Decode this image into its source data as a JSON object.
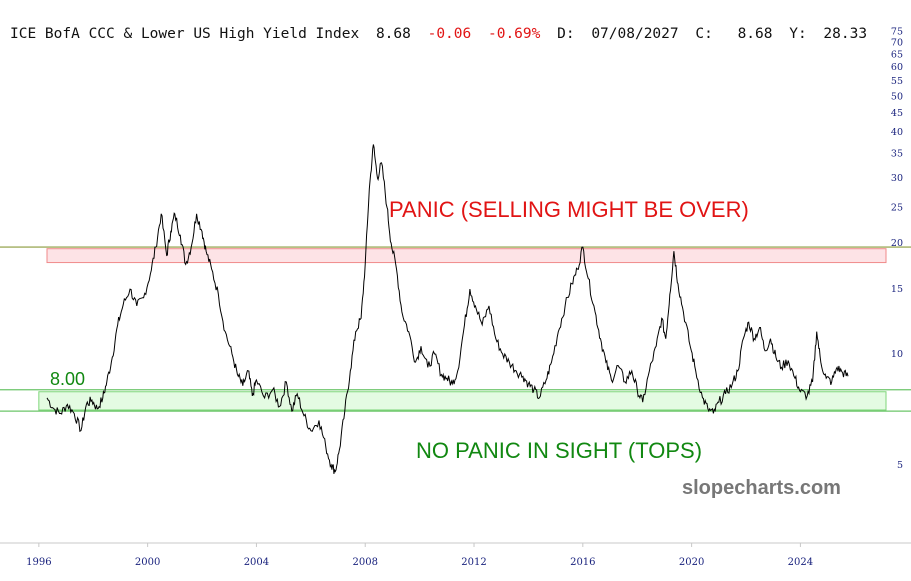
{
  "header": {
    "name": "ICE BofA CCC & Lower US High Yield Index",
    "last": "8.68",
    "change": "-0.06",
    "change_pct": "-0.69%",
    "date_label": "D:",
    "date": "07/08/2027",
    "close_label": "C:",
    "close": "8.68",
    "y_label": "Y:",
    "y_value": "28.33"
  },
  "annotations": {
    "panic_label": "PANIC (SELLING MIGHT BE OVER)",
    "calm_label": "NO PANIC IN SIGHT (TOPS)",
    "level_label": "8.00",
    "watermark": "slopecharts.com"
  },
  "colors": {
    "line": "#000000",
    "red_zone_fill": "#fde3e6",
    "red_zone_edge": "#f08a8a",
    "green_zone_fill": "#e4fbe2",
    "green_zone_edge": "#7fd67a",
    "green_line": "#6cc56a",
    "olive_line": "#8a9a3a",
    "axis_text": "#1a237e"
  },
  "chart_data": {
    "type": "line",
    "scale": "log",
    "ylim": [
      3.5,
      75
    ],
    "xlim": [
      1995.9,
      2027.6
    ],
    "yticks": [
      5,
      10,
      15,
      20,
      25,
      30,
      35,
      40,
      45,
      50,
      55,
      60,
      65,
      70,
      75
    ],
    "xticks": [
      1996,
      2000,
      2004,
      2008,
      2012,
      2016,
      2020,
      2024
    ],
    "reference_lines": [
      {
        "value": 8.0,
        "color": "#6cc56a",
        "label": "8.00"
      },
      {
        "value": 7.0,
        "color": "#6cc56a"
      },
      {
        "value": 19.5,
        "color": "#8a9a3a"
      }
    ],
    "zones": [
      {
        "from": 17.7,
        "to": 19.3,
        "color": "#fde3e6",
        "label": "PANIC (SELLING MIGHT BE OVER)",
        "x_start": 1996.3,
        "x_end": 2027.4
      },
      {
        "from": 7.05,
        "to": 7.9,
        "color": "#e4fbe2",
        "label": "NO PANIC IN SIGHT (TOPS)",
        "x_start": 1996.0,
        "x_end": 2027.5
      }
    ],
    "series": [
      {
        "points": [
          [
            1996.3,
            7.6
          ],
          [
            1996.55,
            7.1
          ],
          [
            1996.8,
            6.9
          ],
          [
            1997.05,
            7.3
          ],
          [
            1997.3,
            6.9
          ],
          [
            1997.55,
            6.2
          ],
          [
            1997.75,
            7.3
          ],
          [
            1997.95,
            7.5
          ],
          [
            1998.15,
            7.1
          ],
          [
            1998.35,
            7.6
          ],
          [
            1998.5,
            8.4
          ],
          [
            1998.7,
            9.8
          ],
          [
            1998.9,
            12.0
          ],
          [
            1999.1,
            13.6
          ],
          [
            1999.35,
            15.0
          ],
          [
            1999.6,
            13.5
          ],
          [
            1999.85,
            14.2
          ],
          [
            2000.1,
            16.5
          ],
          [
            2000.3,
            19.5
          ],
          [
            2000.5,
            24.0
          ],
          [
            2000.7,
            18.5
          ],
          [
            2000.85,
            21.5
          ],
          [
            2001.0,
            24.0
          ],
          [
            2001.2,
            21.0
          ],
          [
            2001.4,
            17.5
          ],
          [
            2001.6,
            19.5
          ],
          [
            2001.8,
            24.0
          ],
          [
            2002.0,
            21.5
          ],
          [
            2002.15,
            19.0
          ],
          [
            2002.35,
            17.0
          ],
          [
            2002.6,
            14.5
          ],
          [
            2002.85,
            11.5
          ],
          [
            2003.1,
            10.0
          ],
          [
            2003.3,
            8.8
          ],
          [
            2003.5,
            8.2
          ],
          [
            2003.7,
            9.0
          ],
          [
            2003.85,
            7.7
          ],
          [
            2004.0,
            8.5
          ],
          [
            2004.3,
            7.6
          ],
          [
            2004.6,
            8.0
          ],
          [
            2004.85,
            7.2
          ],
          [
            2005.1,
            8.4
          ],
          [
            2005.3,
            7.0
          ],
          [
            2005.5,
            7.8
          ],
          [
            2005.75,
            6.8
          ],
          [
            2006.0,
            6.2
          ],
          [
            2006.3,
            6.6
          ],
          [
            2006.55,
            5.6
          ],
          [
            2006.75,
            5.0
          ],
          [
            2006.9,
            4.8
          ],
          [
            2007.05,
            5.5
          ],
          [
            2007.25,
            7.0
          ],
          [
            2007.45,
            9.0
          ],
          [
            2007.65,
            11.5
          ],
          [
            2007.85,
            12.5
          ],
          [
            2008.0,
            17.5
          ],
          [
            2008.15,
            28.0
          ],
          [
            2008.3,
            37.0
          ],
          [
            2008.45,
            30.0
          ],
          [
            2008.6,
            33.0
          ],
          [
            2008.8,
            25.0
          ],
          [
            2008.95,
            20.0
          ],
          [
            2009.15,
            17.0
          ],
          [
            2009.35,
            13.0
          ],
          [
            2009.6,
            11.5
          ],
          [
            2009.85,
            9.5
          ],
          [
            2010.05,
            10.5
          ],
          [
            2010.3,
            9.2
          ],
          [
            2010.55,
            10.0
          ],
          [
            2010.8,
            8.8
          ],
          [
            2011.0,
            8.6
          ],
          [
            2011.2,
            8.3
          ],
          [
            2011.4,
            9.0
          ],
          [
            2011.65,
            12.0
          ],
          [
            2011.85,
            15.0
          ],
          [
            2012.05,
            13.5
          ],
          [
            2012.3,
            12.0
          ],
          [
            2012.55,
            13.5
          ],
          [
            2012.8,
            11.0
          ],
          [
            2013.05,
            10.0
          ],
          [
            2013.3,
            9.5
          ],
          [
            2013.55,
            9.0
          ],
          [
            2013.8,
            8.7
          ],
          [
            2014.0,
            8.3
          ],
          [
            2014.2,
            8.0
          ],
          [
            2014.4,
            7.6
          ],
          [
            2014.65,
            8.5
          ],
          [
            2014.85,
            9.5
          ],
          [
            2015.1,
            11.5
          ],
          [
            2015.35,
            13.5
          ],
          [
            2015.6,
            15.5
          ],
          [
            2015.8,
            17.0
          ],
          [
            2016.0,
            19.5
          ],
          [
            2016.2,
            16.0
          ],
          [
            2016.45,
            13.0
          ],
          [
            2016.65,
            11.0
          ],
          [
            2016.85,
            9.5
          ],
          [
            2017.05,
            8.5
          ],
          [
            2017.3,
            9.3
          ],
          [
            2017.55,
            8.4
          ],
          [
            2017.8,
            9.0
          ],
          [
            2018.0,
            8.0
          ],
          [
            2018.2,
            7.4
          ],
          [
            2018.45,
            9.0
          ],
          [
            2018.7,
            10.5
          ],
          [
            2018.9,
            12.5
          ],
          [
            2019.05,
            11.0
          ],
          [
            2019.2,
            14.5
          ],
          [
            2019.35,
            19.0
          ],
          [
            2019.5,
            15.5
          ],
          [
            2019.7,
            13.0
          ],
          [
            2019.95,
            10.5
          ],
          [
            2020.15,
            9.0
          ],
          [
            2020.4,
            7.6
          ],
          [
            2020.6,
            7.1
          ],
          [
            2020.8,
            6.9
          ],
          [
            2021.0,
            7.4
          ],
          [
            2021.25,
            7.8
          ],
          [
            2021.5,
            8.3
          ],
          [
            2021.7,
            9.0
          ],
          [
            2021.9,
            11.0
          ],
          [
            2022.1,
            12.2
          ],
          [
            2022.3,
            11.0
          ],
          [
            2022.5,
            11.8
          ],
          [
            2022.7,
            10.2
          ],
          [
            2022.9,
            11.0
          ],
          [
            2023.1,
            9.8
          ],
          [
            2023.3,
            9.2
          ],
          [
            2023.55,
            9.6
          ],
          [
            2023.8,
            8.6
          ],
          [
            2024.0,
            7.9
          ],
          [
            2024.25,
            7.7
          ],
          [
            2024.45,
            8.4
          ],
          [
            2024.6,
            11.5
          ],
          [
            2024.75,
            9.5
          ],
          [
            2024.95,
            8.6
          ],
          [
            2025.15,
            8.4
          ],
          [
            2025.35,
            9.2
          ],
          [
            2025.55,
            8.9
          ],
          [
            2025.75,
            8.7
          ]
        ]
      }
    ]
  }
}
